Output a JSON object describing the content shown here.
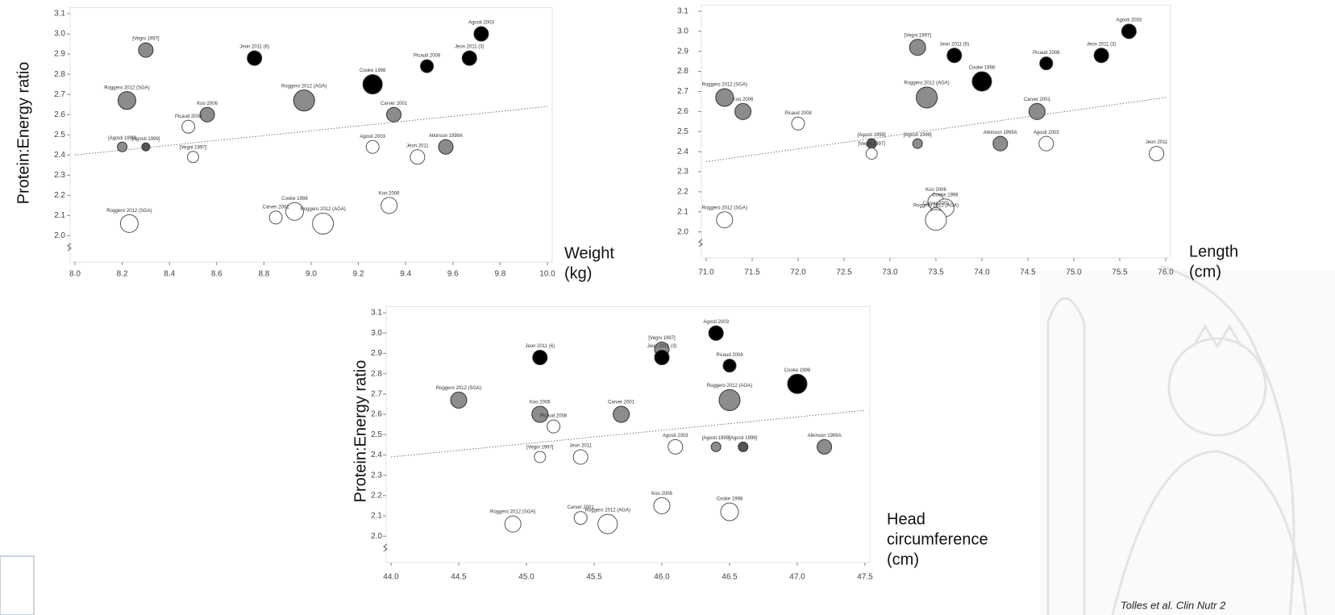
{
  "chart_data": [
    {
      "type": "scatter",
      "ylabel": "Protein:Energy ratio",
      "xlabel": [
        "Weight",
        "(kg)"
      ],
      "xlim": [
        8.0,
        10.0
      ],
      "ylim": [
        1.87,
        3.13
      ],
      "xticks": [
        {
          "value": 8.0,
          "label": "8.0"
        },
        8.2,
        8.4,
        8.6,
        8.8,
        {
          "value": 9.0,
          "label": "9.0"
        },
        9.2,
        9.4,
        9.6,
        9.8,
        {
          "value": 10.0,
          "label": "10.0"
        }
      ],
      "yticks": [
        {
          "value": 2.0,
          "label": "2.0"
        },
        2.1,
        2.2,
        2.3,
        2.4,
        2.5,
        2.6,
        2.7,
        2.8,
        2.9,
        {
          "value": 3.0,
          "label": "3.0"
        },
        3.1
      ],
      "trend": {
        "x": [
          8.0,
          10.0
        ],
        "y": [
          2.4,
          2.64
        ]
      },
      "labels": [
        "[Vegni 1997]",
        "Jeon 2011 (6)",
        "Agosti 2003",
        "Picaud 2008",
        "Jeon 2011 (3)",
        "Cooke 1998",
        "Roggero 2012 (SGA)",
        "Roggero 2012 (AGA)",
        "Koo 2006",
        "Carver 2001",
        "Picaud 2008",
        "[Agosti 1999]",
        "[Agosti 1999]",
        "[Vegni 1997]",
        "Agosti 2003",
        "Atkinson 1999A",
        "Jeon 2011",
        "Koo 2006",
        "Cooke 1998",
        "Carver 2001",
        "Roggero 2012 (AGA)",
        "Roggero 2012 (SGA)"
      ],
      "x": [
        8.3,
        8.76,
        9.72,
        9.49,
        9.67,
        9.26,
        8.22,
        8.97,
        8.56,
        9.35,
        8.48,
        8.2,
        8.3,
        8.5,
        9.26,
        9.57,
        9.45,
        9.33,
        8.93,
        8.85,
        9.05,
        8.23
      ],
      "y": [
        2.92,
        2.88,
        3.0,
        2.84,
        2.88,
        2.75,
        2.67,
        2.67,
        2.6,
        2.6,
        2.54,
        2.44,
        2.44,
        2.39,
        2.44,
        2.44,
        2.39,
        2.15,
        2.12,
        2.09,
        2.06,
        2.06
      ],
      "sizes": [
        9,
        9,
        9,
        8,
        9,
        12,
        11,
        13,
        9,
        9,
        8,
        6,
        5,
        7,
        8,
        9,
        9,
        10,
        11,
        8,
        13,
        11
      ],
      "colors": [
        "#8c8c8c",
        "#000000",
        "#000000",
        "#000000",
        "#000000",
        "#000000",
        "#8c8c8c",
        "#8c8c8c",
        "#8c8c8c",
        "#8c8c8c",
        "#ffffff",
        "#8c8c8c",
        "#555555",
        "#ffffff",
        "#ffffff",
        "#8c8c8c",
        "#ffffff",
        "#ffffff",
        "#ffffff",
        "#ffffff",
        "#ffffff",
        "#ffffff"
      ]
    },
    {
      "type": "scatter",
      "xlabel": [
        "Length",
        "(cm)"
      ],
      "xlim": [
        71.0,
        76.0
      ],
      "ylim": [
        1.87,
        3.13
      ],
      "xticks": [
        {
          "value": 71.0,
          "label": "71.0"
        },
        71.5,
        {
          "value": 72.0,
          "label": "72.0"
        },
        72.5,
        {
          "value": 73.0,
          "label": "73.0"
        },
        73.5,
        {
          "value": 74.0,
          "label": "74.0"
        },
        74.5,
        {
          "value": 75.0,
          "label": "75.0"
        },
        75.5,
        {
          "value": 76.0,
          "label": "76.0"
        }
      ],
      "yticks": [
        {
          "value": 2.0,
          "label": "2.0"
        },
        2.1,
        2.2,
        2.3,
        2.4,
        2.5,
        2.6,
        2.7,
        2.8,
        2.9,
        {
          "value": 3.0,
          "label": "3.0"
        },
        3.1
      ],
      "trend": {
        "x": [
          71.0,
          76.0
        ],
        "y": [
          2.35,
          2.67
        ]
      },
      "labels": [
        "Roggero 2012 (SGA)",
        "Koo 2006",
        "Picaud 2008",
        "[Vegni 1997]",
        "Jeon 2011 (6)",
        "Cooke 1998",
        "Picaud 2008",
        "Agosti 2003",
        "Jeon 2011 (3)",
        "Roggero 2012 (AGA)",
        "Carver 2001",
        "[Agosti 1999]",
        "[Vegni 1997]",
        "[Agosti 1999]",
        "Atkinson 1999A",
        "Agosti 2003",
        "Jeon 2011",
        "Koo 2006",
        "Cooke 1998",
        "Carver 2001",
        "Roggero 2012 (AGA)",
        "Roggero 2012 (SGA)"
      ],
      "x": [
        71.2,
        71.4,
        72.0,
        73.3,
        73.7,
        74.0,
        74.7,
        75.6,
        75.3,
        73.4,
        74.6,
        72.8,
        72.8,
        73.3,
        74.2,
        74.7,
        75.9,
        73.5,
        73.6,
        73.5,
        73.5,
        71.2
      ],
      "y": [
        2.67,
        2.6,
        2.54,
        2.92,
        2.88,
        2.75,
        2.84,
        3.0,
        2.88,
        2.67,
        2.6,
        2.44,
        2.39,
        2.44,
        2.44,
        2.44,
        2.39,
        2.15,
        2.12,
        2.09,
        2.06,
        2.06
      ],
      "sizes": [
        11,
        10,
        8,
        10,
        9,
        12,
        8,
        9,
        9,
        13,
        10,
        6,
        7,
        6,
        9,
        9,
        9,
        10,
        11,
        8,
        13,
        10
      ],
      "colors": [
        "#8c8c8c",
        "#8c8c8c",
        "#ffffff",
        "#8c8c8c",
        "#000000",
        "#000000",
        "#000000",
        "#000000",
        "#000000",
        "#8c8c8c",
        "#8c8c8c",
        "#555555",
        "#ffffff",
        "#8c8c8c",
        "#8c8c8c",
        "#ffffff",
        "#ffffff",
        "#ffffff",
        "#ffffff",
        "#ffffff",
        "#ffffff",
        "#ffffff"
      ]
    },
    {
      "type": "scatter",
      "ylabel": "Protein:Energy ratio",
      "xlabel": [
        "Head",
        "circumference",
        "(cm)"
      ],
      "xlim": [
        44.0,
        47.5
      ],
      "ylim": [
        1.87,
        3.13
      ],
      "xticks": [
        {
          "value": 44.0,
          "label": "44.0"
        },
        44.5,
        {
          "value": 45.0,
          "label": "45.0"
        },
        45.5,
        {
          "value": 46.0,
          "label": "46.0"
        },
        46.5,
        {
          "value": 47.0,
          "label": "47.0"
        },
        47.5
      ],
      "yticks": [
        {
          "value": 2.0,
          "label": "2.0"
        },
        2.1,
        2.2,
        2.3,
        2.4,
        2.5,
        2.6,
        2.7,
        2.8,
        2.9,
        {
          "value": 3.0,
          "label": "3.0"
        },
        3.1
      ],
      "trend": {
        "x": [
          44.0,
          47.5
        ],
        "y": [
          2.39,
          2.62
        ]
      },
      "labels": [
        "Jeon 2011 (6)",
        "[Vegni 1997]",
        "Jeon 2011 (3)",
        "Agosti 2003",
        "Picaud 2008",
        "Cooke 1998",
        "Roggero 2012 (SGA)",
        "Roggero 2012 (AGA)",
        "Koo 2006",
        "Carver 2001",
        "Picaud 2008",
        "[Vegni 1997]",
        "Jeon 2011",
        "Agosti 2003",
        "[Agosti 1999]",
        "[Agosti 1999]",
        "Atkinson 1999A",
        "Koo 2006",
        "Cooke 1998",
        "Carver 2001",
        "Roggero 2012 (AGA)",
        "Roggero 2012 (SGA)"
      ],
      "x": [
        45.1,
        46.0,
        46.0,
        46.4,
        46.5,
        47.0,
        44.5,
        46.5,
        45.1,
        45.7,
        45.2,
        45.1,
        45.4,
        46.1,
        46.4,
        46.6,
        47.2,
        46.0,
        46.5,
        45.4,
        45.6,
        44.9
      ],
      "y": [
        2.88,
        2.92,
        2.88,
        3.0,
        2.84,
        2.75,
        2.67,
        2.67,
        2.6,
        2.6,
        2.54,
        2.39,
        2.39,
        2.44,
        2.44,
        2.44,
        2.44,
        2.15,
        2.12,
        2.09,
        2.06,
        2.06
      ],
      "sizes": [
        9,
        9,
        9,
        9,
        8,
        12,
        10,
        13,
        10,
        10,
        8,
        7,
        9,
        9,
        6,
        6,
        9,
        10,
        11,
        8,
        12,
        10
      ],
      "colors": [
        "#000000",
        "#8c8c8c",
        "#000000",
        "#000000",
        "#000000",
        "#000000",
        "#8c8c8c",
        "#8c8c8c",
        "#8c8c8c",
        "#8c8c8c",
        "#ffffff",
        "#ffffff",
        "#ffffff",
        "#ffffff",
        "#8c8c8c",
        "#555555",
        "#8c8c8c",
        "#ffffff",
        "#ffffff",
        "#ffffff",
        "#ffffff",
        "#ffffff"
      ]
    }
  ],
  "source": "Tolles et al. Clin Nutr 2"
}
